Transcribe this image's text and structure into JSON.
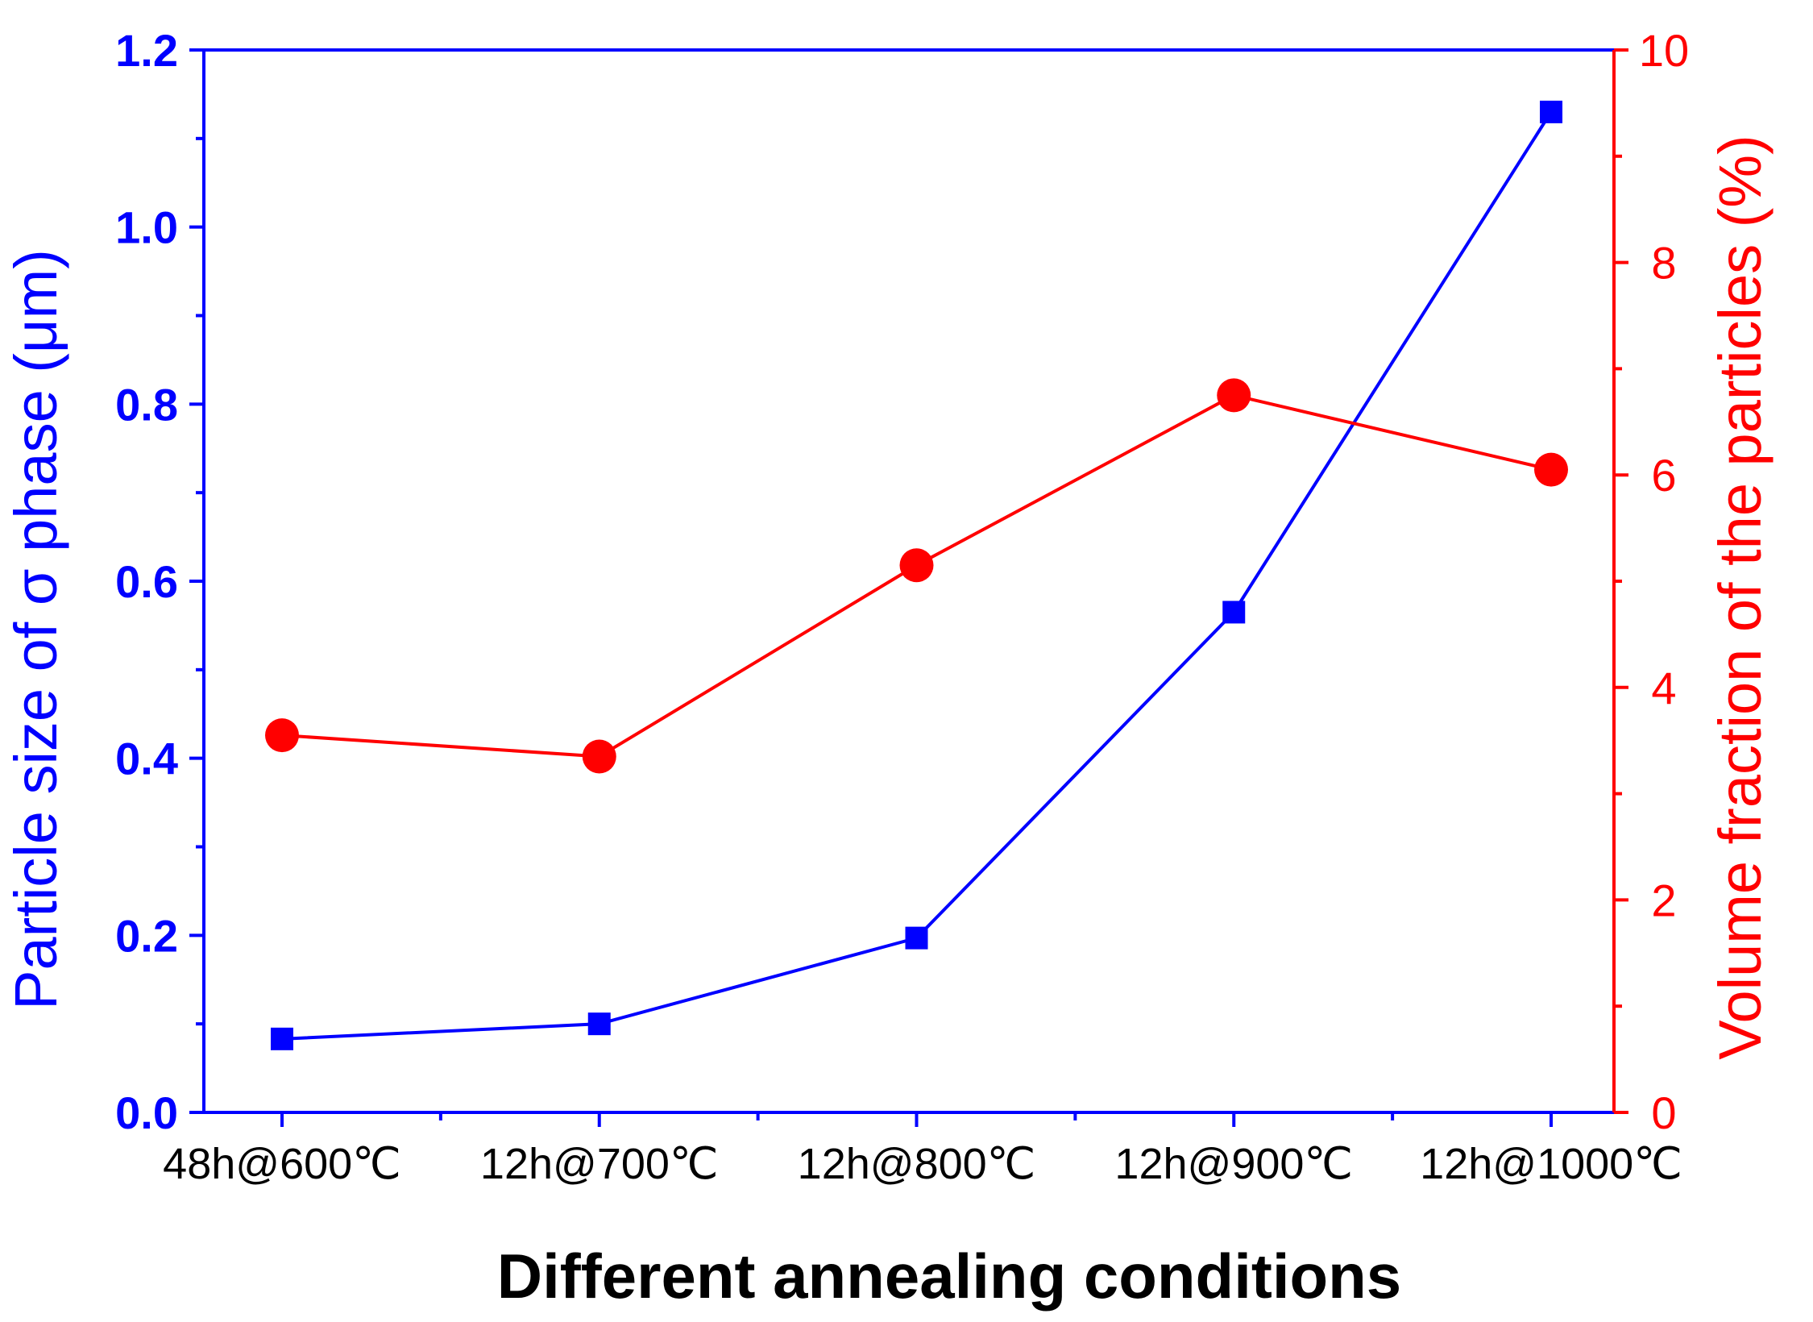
{
  "colors": {
    "left_axis": "#0000ff",
    "right_axis": "#ff0000",
    "frame": "#0000ff",
    "x_tick_text": "#000000"
  },
  "chart_data": {
    "type": "line",
    "title": "",
    "xlabel": "Different annealing conditions",
    "categories": [
      "48h@600℃",
      "12h@700℃",
      "12h@800℃",
      "12h@900℃",
      "12h@1000℃"
    ],
    "series": [
      {
        "name": "Particle size of σ phase (μm)",
        "axis": "left",
        "marker": "square",
        "color": "#0000ff",
        "values": [
          0.083,
          0.1,
          0.197,
          0.565,
          1.13
        ]
      },
      {
        "name": "Volume fraction of the particles (%)",
        "axis": "right",
        "marker": "circle",
        "color": "#ff0000",
        "values": [
          3.55,
          3.35,
          5.15,
          6.75,
          6.05
        ]
      }
    ],
    "y_left": {
      "label": "Particle size of σ phase (μm)",
      "ylim": [
        0.0,
        1.2
      ],
      "ticks": [
        "0.0",
        "0.2",
        "0.4",
        "0.6",
        "0.8",
        "1.0",
        "1.2"
      ]
    },
    "y_right": {
      "label": "Volume fraction of the particles (%)",
      "ylim": [
        0,
        10
      ],
      "ticks": [
        "0",
        "2",
        "4",
        "6",
        "8",
        "10"
      ]
    },
    "grid": false,
    "legend": "none"
  }
}
